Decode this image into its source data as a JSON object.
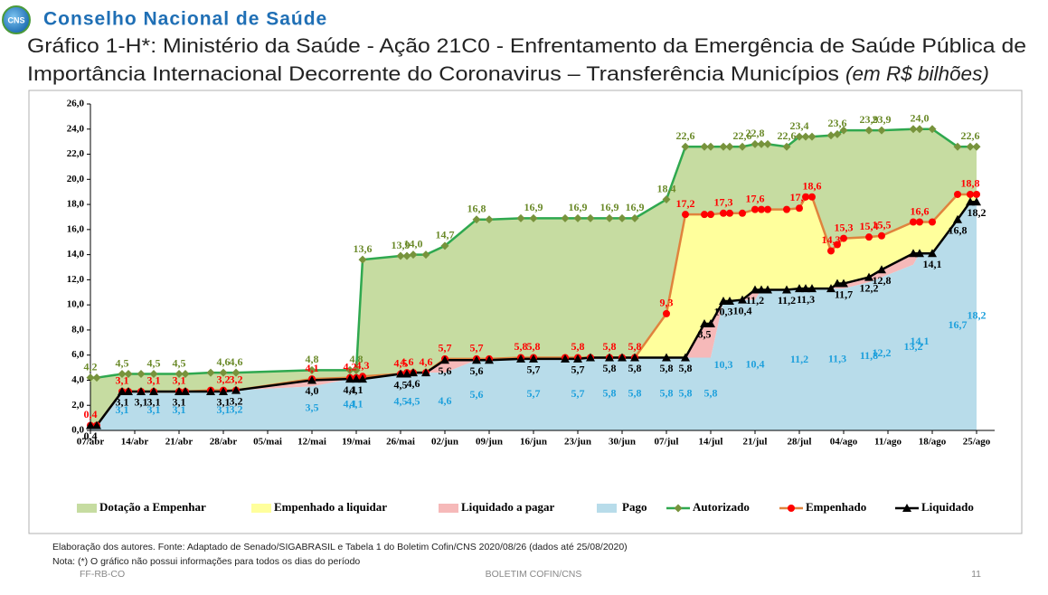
{
  "header": {
    "logo_text": "CNS",
    "org": "Conselho Nacional de Saúde",
    "title_lines": [
      "Gráfico 1-H*: Ministério da Saúde - Ação 21C0 - Enfrentamento da Emergência de Saúde Pública de",
      "Importância Internacional Decorrente do Coronavirus – Transferência Municípios"
    ],
    "title_unit": "(em R$ bilhões)"
  },
  "chart_data": {
    "type": "line",
    "x": [
      "07/abr",
      "08/abr",
      "12/abr",
      "13/abr",
      "15/abr",
      "17/abr",
      "21/abr",
      "22/abr",
      "26/abr",
      "28/abr",
      "30/abr",
      "12/mai",
      "18/mai",
      "19/mai",
      "20/mai",
      "26/mai",
      "27/mai",
      "28/mai",
      "30/mai",
      "02/jun",
      "07/jun",
      "09/jun",
      "14/jun",
      "16/jun",
      "21/jun",
      "23/jun",
      "25/jun",
      "28/jun",
      "30/jun",
      "02/jul",
      "07/jul",
      "10/jul",
      "13/jul",
      "14/jul",
      "16/jul",
      "17/jul",
      "19/jul",
      "21/jul",
      "22/jul",
      "23/jul",
      "26/jul",
      "28/jul",
      "29/jul",
      "30/jul",
      "02/ago",
      "03/ago",
      "04/ago",
      "08/ago",
      "10/ago",
      "15/ago",
      "16/ago",
      "18/ago",
      "22/ago",
      "24/ago",
      "25/ago"
    ],
    "xlim": [
      "07/abr",
      "25/ago"
    ],
    "xticks": [
      "07/abr",
      "14/abr",
      "21/abr",
      "28/abr",
      "05/mai",
      "12/mai",
      "19/mai",
      "26/mai",
      "02/jun",
      "09/jun",
      "16/jun",
      "23/jun",
      "30/jun",
      "07/jul",
      "14/jul",
      "21/jul",
      "28/jul",
      "04/ago",
      "11/ago",
      "18/ago",
      "25/ago"
    ],
    "ylim": [
      0,
      26
    ],
    "yticks": [
      {
        "value": 0,
        "label": "0,0"
      },
      {
        "value": 2,
        "label": "2,0"
      },
      {
        "value": 4,
        "label": "4,0"
      },
      {
        "value": 6,
        "label": "6,0"
      },
      {
        "value": 8,
        "label": "8,0"
      },
      {
        "value": 10,
        "label": "10,0"
      },
      {
        "value": 12,
        "label": "12,0"
      },
      {
        "value": 14,
        "label": "14,0"
      },
      {
        "value": 16,
        "label": "16,0"
      },
      {
        "value": 18,
        "label": "18,0"
      },
      {
        "value": 20,
        "label": "20,0"
      },
      {
        "value": 22,
        "label": "22,0"
      },
      {
        "value": 24,
        "label": "24,0"
      },
      {
        "value": 26,
        "label": "26,0"
      }
    ],
    "grid": false,
    "areas": [
      {
        "name": "Dotação a Empenhar",
        "color": "#c6dca1"
      },
      {
        "name": "Empenhado a liquidar",
        "color": "#ffff9c"
      },
      {
        "name": "Liquidado a pagar",
        "color": "#f6b9b9"
      }
    ],
    "series": [
      {
        "name": "Autorizado",
        "color": "#2fa84f",
        "marker_color": "#77933c",
        "label_color": "#6b8a2a",
        "marker": "diamond",
        "label_position": "above",
        "values": [
          4.2,
          4.2,
          4.5,
          4.5,
          4.5,
          4.5,
          4.5,
          4.5,
          4.6,
          4.6,
          4.6,
          4.8,
          4.8,
          4.8,
          13.6,
          13.9,
          13.9,
          14.0,
          14.0,
          14.7,
          16.8,
          16.8,
          16.9,
          16.9,
          16.9,
          16.9,
          16.9,
          16.9,
          16.9,
          16.9,
          18.4,
          22.6,
          22.6,
          22.6,
          22.6,
          22.6,
          22.6,
          22.8,
          22.8,
          22.8,
          22.6,
          23.4,
          23.4,
          23.4,
          23.5,
          23.6,
          23.9,
          23.9,
          23.9,
          24.0,
          24.0,
          24.0,
          22.6,
          22.6,
          22.6
        ],
        "value_labels": [
          "4,2",
          null,
          "4,5",
          null,
          null,
          "4,5",
          "4,5",
          null,
          null,
          "4,6",
          "4,6",
          "4,8",
          null,
          "4,8",
          "13,6",
          "13,9",
          null,
          "14,0",
          null,
          "14,7",
          "16,8",
          null,
          null,
          "16,9",
          null,
          "16,9",
          null,
          "16,9",
          null,
          "16,9",
          "18,4",
          "22,6",
          null,
          null,
          null,
          null,
          "22,6",
          "22,8",
          null,
          null,
          "22,6",
          "23,4",
          null,
          null,
          null,
          "23,6",
          null,
          "23,9",
          "23,9",
          null,
          "24,0",
          null,
          null,
          "22,6",
          null
        ]
      },
      {
        "name": "Empenhado",
        "color": "#e0833d",
        "marker_color": "#ff0000",
        "label_color": "#ff0000",
        "marker": "circle",
        "label_position": "above",
        "values": [
          0.4,
          0.4,
          3.1,
          3.1,
          3.1,
          3.1,
          3.1,
          3.1,
          3.2,
          3.2,
          3.2,
          4.1,
          4.2,
          4.2,
          4.3,
          4.5,
          4.6,
          4.6,
          4.6,
          5.7,
          5.7,
          5.7,
          5.8,
          5.8,
          5.8,
          5.8,
          5.8,
          5.8,
          5.8,
          5.8,
          9.3,
          17.2,
          17.2,
          17.2,
          17.3,
          17.3,
          17.3,
          17.6,
          17.6,
          17.6,
          17.6,
          17.7,
          18.6,
          18.6,
          14.3,
          14.8,
          15.3,
          15.4,
          15.5,
          16.6,
          16.6,
          16.6,
          18.8,
          18.8,
          18.8
        ],
        "value_labels": [
          "0,4",
          null,
          "3,1",
          null,
          null,
          "3,1",
          "3,1",
          null,
          null,
          "3,2",
          "3,2",
          "4,1",
          "4,2",
          null,
          "4,3",
          "4,5",
          "4,6",
          null,
          "4,6",
          "5,7",
          "5,7",
          null,
          "5,8",
          "5,8",
          null,
          "5,8",
          null,
          "5,8",
          null,
          "5,8",
          "9,3",
          "17,2",
          null,
          null,
          "17,3",
          null,
          null,
          "17,6",
          null,
          null,
          null,
          "17,7",
          null,
          "18,6",
          "14,3",
          null,
          "15,3",
          "15,4",
          "15,5",
          null,
          "16,6",
          null,
          null,
          "18,8",
          null
        ]
      },
      {
        "name": "Liquidado",
        "color": "#000000",
        "marker_color": "#000000",
        "label_color": "#000000",
        "marker": "triangle",
        "label_position": "below",
        "values": [
          0.4,
          0.4,
          3.1,
          3.1,
          3.1,
          3.1,
          3.1,
          3.1,
          3.1,
          3.1,
          3.2,
          4.0,
          4.1,
          4.1,
          4.1,
          4.5,
          4.5,
          4.6,
          4.6,
          5.6,
          5.6,
          5.6,
          5.7,
          5.7,
          5.7,
          5.7,
          5.8,
          5.8,
          5.8,
          5.8,
          5.8,
          5.8,
          8.5,
          8.5,
          10.3,
          10.3,
          10.4,
          11.2,
          11.2,
          11.2,
          11.2,
          11.3,
          11.3,
          11.3,
          11.3,
          11.7,
          11.7,
          12.2,
          12.8,
          14.1,
          14.1,
          14.1,
          16.8,
          18.2,
          18.2
        ],
        "value_labels": [
          "0,4",
          null,
          "3,1",
          null,
          "3,1",
          "3,1",
          "3,1",
          null,
          null,
          "3,1",
          "3,2",
          "4,0",
          "4,1",
          "4,1",
          null,
          "4,5",
          null,
          "4,6",
          null,
          "5,6",
          "5,6",
          null,
          null,
          "5,7",
          null,
          "5,7",
          null,
          "5,8",
          null,
          "5,8",
          "5,8",
          "5,8",
          "8,5",
          null,
          "10,3",
          null,
          "10,4",
          "11,2",
          null,
          null,
          "11,2",
          null,
          "11,3",
          null,
          null,
          null,
          "11,7",
          "12,2",
          "12,8",
          null,
          null,
          "14,1",
          "16,8",
          null,
          "18,2"
        ]
      },
      {
        "name": "Pago",
        "color": "#b8dcea",
        "label_color": "#1ea0dc",
        "style": "area",
        "label_position": "center",
        "values": [
          0.4,
          0.4,
          3.1,
          3.1,
          3.1,
          3.1,
          3.1,
          3.1,
          3.1,
          3.1,
          3.2,
          3.5,
          4.1,
          4.1,
          4.1,
          4.5,
          4.5,
          4.5,
          4.6,
          4.6,
          5.6,
          5.6,
          5.7,
          5.7,
          5.7,
          5.7,
          5.8,
          5.8,
          5.8,
          5.8,
          5.8,
          5.8,
          5.8,
          5.8,
          10.3,
          10.3,
          10.4,
          10.4,
          11.2,
          11.2,
          11.2,
          11.2,
          11.3,
          11.3,
          11.3,
          11.3,
          11.3,
          11.8,
          12.2,
          13.2,
          14.1,
          14.1,
          16.7,
          18.2,
          18.2
        ],
        "value_labels": [
          null,
          null,
          "3,1",
          null,
          null,
          "3,1",
          "3,1",
          null,
          null,
          "3,1",
          "3,2",
          "3,5",
          "4,1",
          "4,1",
          null,
          "4,5",
          null,
          "4,5",
          null,
          "4,6",
          "5,6",
          null,
          null,
          "5,7",
          null,
          "5,7",
          null,
          "5,8",
          null,
          "5,8",
          "5,8",
          "5,8",
          null,
          "5,8",
          "10,3",
          null,
          null,
          "10,4",
          null,
          null,
          null,
          "11,2",
          null,
          null,
          null,
          "11,3",
          null,
          "11,8",
          "12,2",
          "13,2",
          "14,1",
          null,
          "16,7",
          null,
          "18,2"
        ]
      }
    ]
  },
  "footer": {
    "source": "Elaboração dos autores. Fonte: Adaptado de Senado/SIGABRASIL e Tabela 1 do Boletim Cofin/CNS 2020/08/26 (dados até 25/08/2020)",
    "note": "Nota: (*) O gráfico não possui informações para todos os dias do período",
    "left": "FF-RB-CO",
    "center": "BOLETIM COFIN/CNS",
    "page": "11"
  }
}
